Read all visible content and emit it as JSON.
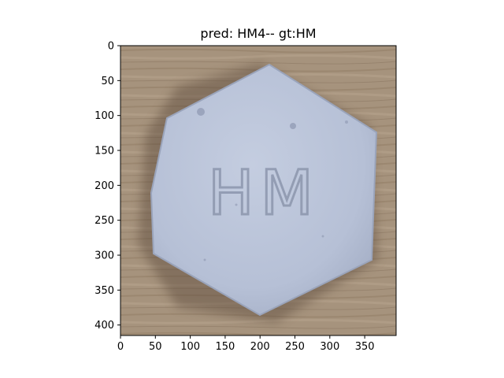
{
  "figure": {
    "title": "pred: HM4-- gt:HM",
    "image": {
      "description_icon": "pill-photo",
      "imprint_text": "HM",
      "pill_color": "#b8c3d9",
      "background_color": "#a9957c"
    },
    "x_axis": {
      "ticks": [
        0,
        50,
        100,
        150,
        200,
        250,
        300,
        350
      ],
      "range": [
        0,
        395
      ]
    },
    "y_axis": {
      "ticks": [
        0,
        50,
        100,
        150,
        200,
        250,
        300,
        350,
        400
      ],
      "range": [
        0,
        415
      ],
      "inverted": true
    }
  }
}
